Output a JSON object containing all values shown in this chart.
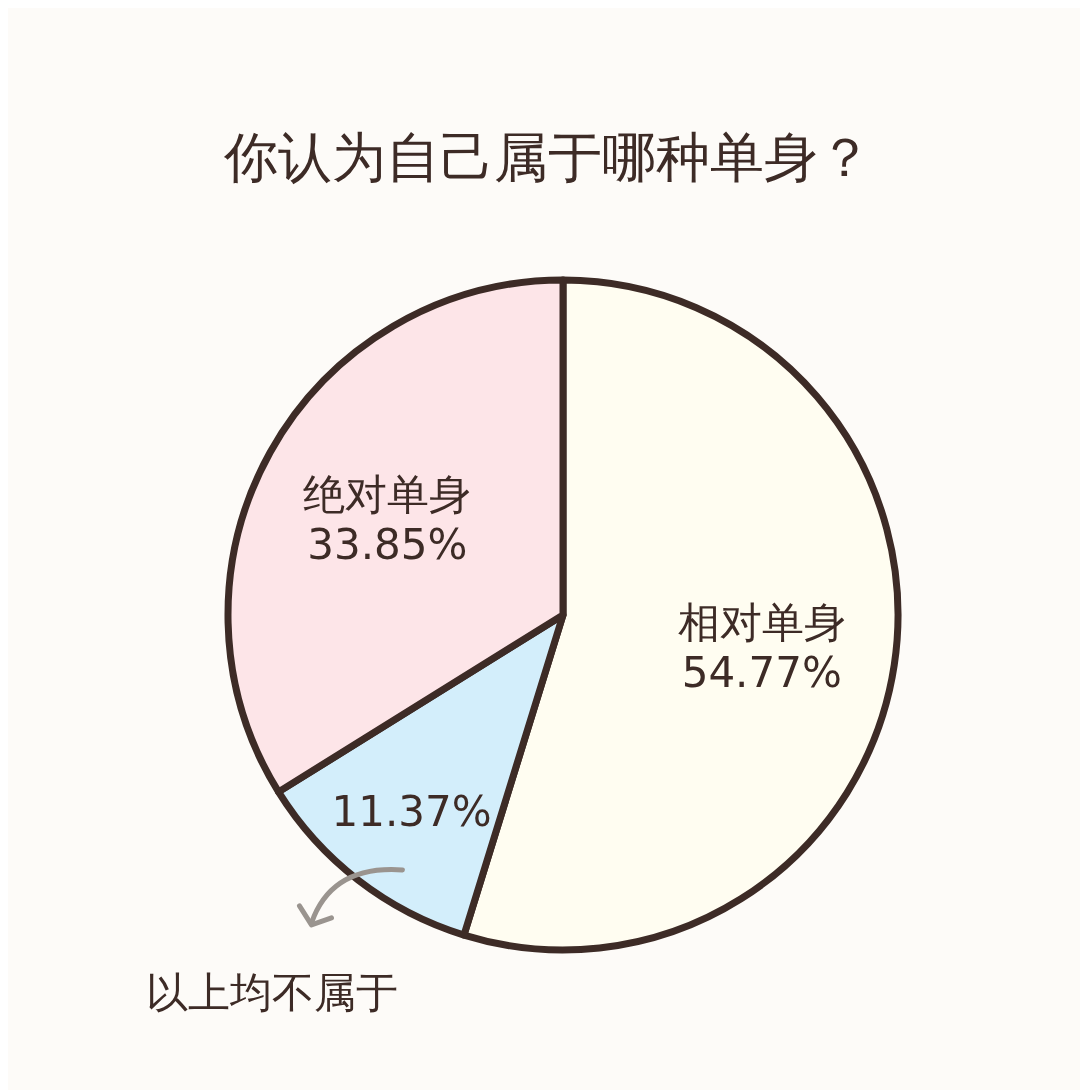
{
  "chart_data": {
    "type": "pie",
    "title": "你认为自己属于哪种单身？",
    "categories": [
      "相对单身",
      "以上均不属于",
      "绝对单身"
    ],
    "values": [
      54.77,
      11.37,
      33.85
    ],
    "value_labels": [
      "54.77%",
      "11.37%",
      "33.85%"
    ],
    "colors": [
      "#fffdf1",
      "#d3eefb",
      "#fde5e8"
    ]
  }
}
